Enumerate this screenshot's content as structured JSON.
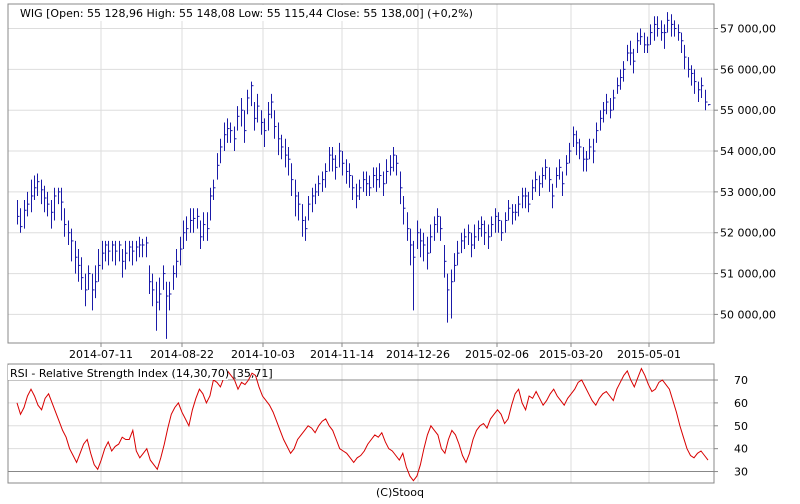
{
  "colors": {
    "price_bars": "#1a1aa8",
    "rsi_line": "#d80000",
    "grid": "#dddddd",
    "frame": "#888888",
    "level_lines": "#888888"
  },
  "footer": {
    "credit": "(C)Stooq"
  },
  "chart_data": [
    {
      "type": "ohlc",
      "title": "WIG [Open: 55 128,96  High: 55 148,08  Low: 55 115,44  Close: 55 138,00] (+0,2%)",
      "x_ticks": [
        "2014-07-11",
        "2014-08-22",
        "2014-10-03",
        "2014-11-14",
        "2014-12-26",
        "2015-02-06",
        "2015-03-20",
        "2015-05-01"
      ],
      "y_ticks": [
        {
          "value": 50000,
          "label": "50 000,00"
        },
        {
          "value": 51000,
          "label": "51 000,00"
        },
        {
          "value": 52000,
          "label": "52 000,00"
        },
        {
          "value": 53000,
          "label": "53 000,00"
        },
        {
          "value": 54000,
          "label": "54 000,00"
        },
        {
          "value": 55000,
          "label": "55 000,00"
        },
        {
          "value": 56000,
          "label": "56 000,00"
        },
        {
          "value": 57000,
          "label": "57 000,00"
        }
      ],
      "ylim": [
        49300,
        57600
      ],
      "grid": true,
      "axis_side": "right",
      "close": [
        52400,
        52150,
        52550,
        52700,
        52900,
        53100,
        53250,
        53050,
        52850,
        52700,
        52500,
        52900,
        53000,
        52750,
        52200,
        52000,
        51800,
        51400,
        51200,
        50900,
        50600,
        51000,
        50600,
        50800,
        51200,
        51500,
        51700,
        51550,
        51700,
        51550,
        51700,
        51300,
        51500,
        51650,
        51550,
        51650,
        51700,
        51700,
        51750,
        50800,
        50600,
        50300,
        50500,
        51000,
        50450,
        50500,
        51000,
        51300,
        51600,
        52000,
        52100,
        52300,
        52350,
        52400,
        51900,
        52200,
        52100,
        52900,
        53100,
        53650,
        54100,
        54400,
        54550,
        54500,
        54300,
        54850,
        55000,
        54500,
        55300,
        55600,
        54800,
        55100,
        54700,
        54500,
        54900,
        55200,
        54600,
        54300,
        54100,
        53900,
        53800,
        53300,
        52900,
        52700,
        52300,
        52100,
        52700,
        52900,
        53000,
        53200,
        53300,
        53500,
        53900,
        53800,
        53600,
        54000,
        53700,
        53500,
        53400,
        53100,
        52900,
        53100,
        53300,
        53200,
        53100,
        53400,
        53300,
        53400,
        53200,
        53500,
        53600,
        53900,
        53700,
        53100,
        52600,
        52100,
        51700,
        51400,
        52000,
        51800,
        51700,
        51500,
        51900,
        52200,
        52400,
        52100,
        51300,
        50600,
        50800,
        51200,
        51500,
        51800,
        51900,
        52000,
        51700,
        51900,
        52100,
        52200,
        52000,
        51900,
        52200,
        52400,
        52300,
        52000,
        52300,
        52600,
        52500,
        52500,
        52700,
        52900,
        52900,
        52700,
        53100,
        53300,
        53200,
        53400,
        53600,
        53300,
        52900,
        53400,
        53600,
        53200,
        53700,
        54000,
        54400,
        54200,
        54100,
        53800,
        53800,
        54100,
        54000,
        54500,
        54800,
        55000,
        55200,
        55000,
        55300,
        55600,
        55800,
        56000,
        56400,
        56400,
        56200,
        56700,
        56800,
        56600,
        56600,
        56900,
        57100,
        57000,
        56900,
        56900,
        57200,
        57100,
        57000,
        56900,
        56700,
        56300,
        56000,
        55900,
        55700,
        55500,
        55600,
        55200,
        55138
      ],
      "high": [
        52800,
        52600,
        52800,
        53000,
        53300,
        53400,
        53450,
        53300,
        53150,
        53000,
        52800,
        53100,
        53100,
        53100,
        52600,
        52300,
        52100,
        51800,
        51600,
        51400,
        51000,
        51200,
        51000,
        51200,
        51600,
        51800,
        51800,
        51800,
        51800,
        51800,
        51800,
        51600,
        51800,
        51800,
        51800,
        51800,
        51900,
        51850,
        51900,
        51200,
        51000,
        50800,
        50900,
        51200,
        50800,
        50800,
        51200,
        51600,
        51900,
        52300,
        52400,
        52600,
        52600,
        52600,
        52300,
        52500,
        52500,
        53100,
        53300,
        53950,
        54300,
        54700,
        54800,
        54700,
        54600,
        55100,
        55300,
        55000,
        55500,
        55700,
        55200,
        55400,
        55000,
        54800,
        55200,
        55400,
        55000,
        54700,
        54400,
        54300,
        54100,
        53700,
        53300,
        53000,
        52700,
        52400,
        52900,
        53100,
        53200,
        53400,
        53500,
        53700,
        54100,
        54100,
        53900,
        54200,
        54000,
        53800,
        53700,
        53400,
        53200,
        53300,
        53500,
        53500,
        53400,
        53600,
        53600,
        53700,
        53500,
        53800,
        53900,
        54100,
        53900,
        53500,
        52900,
        52500,
        52100,
        51800,
        52300,
        52100,
        52000,
        51900,
        52200,
        52400,
        52600,
        52400,
        51700,
        51000,
        51100,
        51500,
        51800,
        52000,
        52100,
        52200,
        52000,
        52200,
        52300,
        52400,
        52300,
        52200,
        52400,
        52600,
        52500,
        52300,
        52500,
        52800,
        52700,
        52700,
        52900,
        53100,
        53100,
        53000,
        53300,
        53500,
        53400,
        53600,
        53800,
        53600,
        53200,
        53600,
        53800,
        53500,
        53900,
        54200,
        54600,
        54500,
        54300,
        54100,
        54000,
        54300,
        54300,
        54700,
        55000,
        55200,
        55400,
        55300,
        55500,
        55800,
        56000,
        56200,
        56600,
        56700,
        56500,
        56900,
        57000,
        56900,
        56800,
        57100,
        57300,
        57300,
        57200,
        57100,
        57400,
        57350,
        57200,
        57100,
        56900,
        56600,
        56300,
        56100,
        56000,
        55700,
        55800,
        55500,
        55148
      ],
      "low": [
        52200,
        52000,
        52100,
        52400,
        52500,
        52800,
        52900,
        52700,
        52500,
        52400,
        52100,
        52300,
        52700,
        52300,
        51900,
        51700,
        51300,
        51000,
        50800,
        50600,
        50200,
        50600,
        50100,
        50400,
        50800,
        51100,
        51300,
        51200,
        51300,
        51200,
        51300,
        50900,
        51100,
        51300,
        51200,
        51300,
        51400,
        51400,
        51400,
        50500,
        50200,
        49600,
        50100,
        50600,
        49400,
        50100,
        50600,
        50900,
        51200,
        51600,
        51800,
        52000,
        52000,
        52100,
        51600,
        51800,
        51800,
        52300,
        52800,
        53300,
        53700,
        54000,
        54200,
        54200,
        54000,
        54500,
        54600,
        54200,
        54900,
        55100,
        54500,
        54700,
        54400,
        54100,
        54500,
        54800,
        54300,
        53900,
        53800,
        53600,
        53400,
        52900,
        52400,
        52300,
        51900,
        51800,
        52300,
        52500,
        52700,
        52900,
        53000,
        53100,
        53500,
        53500,
        53300,
        53600,
        53400,
        53200,
        53100,
        52800,
        52600,
        52800,
        53000,
        52900,
        52900,
        53100,
        53000,
        53100,
        52900,
        53200,
        53400,
        53500,
        53400,
        52700,
        52200,
        51800,
        51200,
        50100,
        51600,
        51400,
        51300,
        51100,
        51500,
        51800,
        52000,
        51800,
        50900,
        49800,
        49900,
        50800,
        51200,
        51500,
        51600,
        51700,
        51400,
        51600,
        51800,
        51900,
        51700,
        51600,
        51900,
        52000,
        52000,
        51800,
        52000,
        52300,
        52200,
        52300,
        52400,
        52600,
        52600,
        52500,
        52800,
        53000,
        52900,
        53100,
        53300,
        53000,
        52600,
        53100,
        53300,
        52900,
        53400,
        53700,
        54100,
        53900,
        53800,
        53500,
        53500,
        53800,
        53700,
        54200,
        54500,
        54700,
        54900,
        54800,
        55000,
        55400,
        55500,
        55700,
        56200,
        56100,
        55900,
        56400,
        56600,
        56400,
        56400,
        56600,
        56700,
        56800,
        56700,
        56500,
        56900,
        56800,
        56800,
        56700,
        56400,
        56000,
        55800,
        55600,
        55400,
        55200,
        55300,
        55000,
        55115
      ]
    },
    {
      "type": "line",
      "title": "RSI - Relative Strength Index (14,30,70) [35,71]",
      "y_ticks": [
        30,
        40,
        50,
        60,
        70
      ],
      "ylim": [
        25,
        77
      ],
      "reference_lines": [
        30,
        70
      ],
      "grid": true,
      "axis_side": "right",
      "values": [
        60,
        55,
        58,
        63,
        66,
        63,
        59,
        57,
        62,
        64,
        60,
        56,
        52,
        48,
        45,
        40,
        37,
        34,
        38,
        42,
        44,
        38,
        33,
        31,
        35,
        40,
        43,
        39,
        41,
        42,
        45,
        44,
        44,
        48,
        39,
        36,
        38,
        40,
        35,
        33,
        31,
        36,
        42,
        49,
        55,
        58,
        60,
        56,
        53,
        50,
        57,
        62,
        66,
        64,
        60,
        63,
        70,
        69,
        67,
        71,
        74,
        72,
        70,
        66,
        69,
        68,
        70,
        73,
        72,
        67,
        63,
        61,
        59,
        56,
        52,
        48,
        44,
        41,
        38,
        40,
        44,
        46,
        48,
        50,
        49,
        47,
        50,
        52,
        53,
        50,
        48,
        44,
        40,
        39,
        38,
        36,
        34,
        36,
        37,
        39,
        42,
        44,
        46,
        45,
        47,
        43,
        40,
        39,
        37,
        35,
        38,
        32,
        28,
        26,
        28,
        33,
        40,
        46,
        50,
        48,
        46,
        40,
        38,
        44,
        48,
        46,
        42,
        37,
        34,
        38,
        44,
        48,
        50,
        51,
        49,
        53,
        55,
        57,
        55,
        51,
        53,
        59,
        64,
        66,
        60,
        57,
        63,
        62,
        65,
        62,
        59,
        61,
        64,
        66,
        63,
        61,
        59,
        62,
        64,
        66,
        69,
        70,
        67,
        64,
        61,
        59,
        62,
        64,
        65,
        63,
        61,
        66,
        69,
        72,
        74,
        70,
        67,
        71,
        75,
        72,
        68,
        65,
        66,
        69,
        70,
        68,
        66,
        61,
        56,
        50,
        45,
        40,
        37,
        36,
        38,
        39,
        37,
        35
      ]
    }
  ]
}
